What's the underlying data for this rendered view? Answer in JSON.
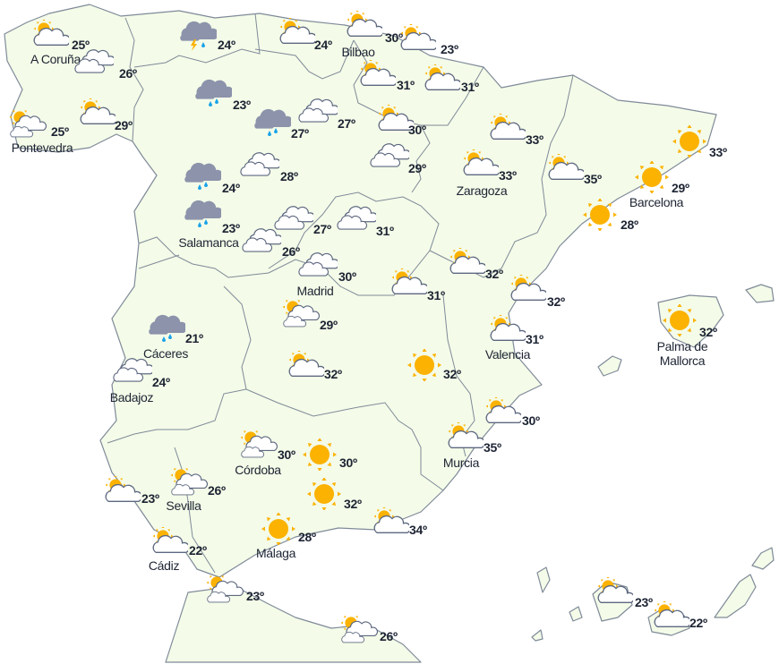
{
  "colors": {
    "land": "#f4fbe8",
    "border": "#7f8a99",
    "sun": "#fbb200",
    "cloud": "#ffffff",
    "cloud_stroke": "#5d6880",
    "rain_cloud": "#8c93ab",
    "rain": "#1aa3e8",
    "text": "#1d2433"
  },
  "stations": [
    {
      "icon": "sun-cloud",
      "temp": "25º",
      "label": "A Coruña"
    },
    {
      "icon": "clouds",
      "temp": "26º"
    },
    {
      "icon": "storm",
      "temp": "24º"
    },
    {
      "icon": "sun-cloud",
      "temp": "24º"
    },
    {
      "icon": "sun-cloud",
      "temp": "30º",
      "label": "Bilbao"
    },
    {
      "icon": "sun-cloud",
      "temp": "23º"
    },
    {
      "icon": "sun-cloud",
      "temp": "31º"
    },
    {
      "icon": "sun-cloud",
      "temp": "31º"
    },
    {
      "icon": "sun-clouds",
      "temp": "25º",
      "label": "Pontevedra"
    },
    {
      "icon": "sun-cloud",
      "temp": "29º"
    },
    {
      "icon": "rain",
      "temp": "23º"
    },
    {
      "icon": "rain",
      "temp": "27º"
    },
    {
      "icon": "clouds",
      "temp": "27º"
    },
    {
      "icon": "sun-cloud",
      "temp": "30º"
    },
    {
      "icon": "clouds",
      "temp": "29º"
    },
    {
      "icon": "sun-cloud",
      "temp": "33º"
    },
    {
      "icon": "clouds",
      "temp": "28º"
    },
    {
      "icon": "rain",
      "temp": "24º"
    },
    {
      "icon": "sun-cloud",
      "temp": "33º",
      "label": "Zaragoza"
    },
    {
      "icon": "sun-cloud",
      "temp": "35º"
    },
    {
      "icon": "sun",
      "temp": "33º"
    },
    {
      "icon": "sun",
      "temp": "29º",
      "label": "Barcelona"
    },
    {
      "icon": "sun",
      "temp": "28º"
    },
    {
      "icon": "rain",
      "temp": "23º",
      "label": "Salamanca"
    },
    {
      "icon": "clouds",
      "temp": "27º"
    },
    {
      "icon": "clouds",
      "temp": "31º"
    },
    {
      "icon": "clouds",
      "temp": "26º"
    },
    {
      "icon": "clouds",
      "temp": "30º",
      "label": "Madrid"
    },
    {
      "icon": "sun-cloud",
      "temp": "32º"
    },
    {
      "icon": "sun-cloud",
      "temp": "31º"
    },
    {
      "icon": "sun-cloud",
      "temp": "32º"
    },
    {
      "icon": "sun",
      "temp": "32º",
      "label": "Palma de Mallorca"
    },
    {
      "icon": "rain",
      "temp": "21º",
      "label": "Cáceres"
    },
    {
      "icon": "sun-clouds",
      "temp": "29º"
    },
    {
      "icon": "sun-cloud",
      "temp": "31º",
      "label": "Valencia"
    },
    {
      "icon": "clouds",
      "temp": "24º",
      "label": "Badajoz"
    },
    {
      "icon": "sun-cloud",
      "temp": "32º"
    },
    {
      "icon": "sun",
      "temp": "32º"
    },
    {
      "icon": "sun-cloud",
      "temp": "30º"
    },
    {
      "icon": "sun-cloud",
      "temp": "35º",
      "label": "Murcia"
    },
    {
      "icon": "sun-clouds",
      "temp": "30º",
      "label": "Córdoba"
    },
    {
      "icon": "sun",
      "temp": "30º"
    },
    {
      "icon": "sun-clouds",
      "temp": "26º",
      "label": "Sevilla"
    },
    {
      "icon": "sun-cloud",
      "temp": "23º"
    },
    {
      "icon": "sun",
      "temp": "32º"
    },
    {
      "icon": "sun-cloud",
      "temp": "34º"
    },
    {
      "icon": "sun",
      "temp": "28º",
      "label": "Málaga"
    },
    {
      "icon": "sun-cloud",
      "temp": "22º",
      "label": "Cádiz"
    },
    {
      "icon": "sun-clouds",
      "temp": "23º"
    },
    {
      "icon": "sun-clouds",
      "temp": "26º"
    },
    {
      "icon": "sun-cloud",
      "temp": "23º"
    },
    {
      "icon": "sun-cloud",
      "temp": "22º"
    }
  ]
}
